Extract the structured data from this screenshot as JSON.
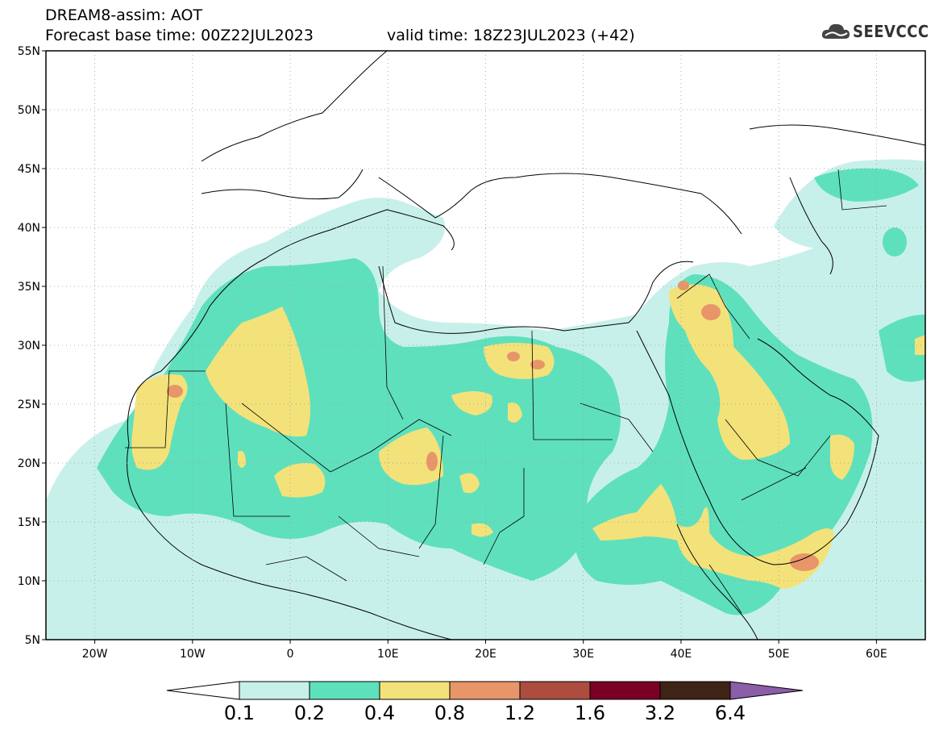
{
  "header": {
    "line1": "DREAM8-assim: AOT",
    "base_time": "Forecast base time: 00Z22JUL2023",
    "valid_time": "valid time: 18Z23JUL2023 (+42)"
  },
  "logo": {
    "text": "SEEVCCC",
    "icon": "cloud-icon"
  },
  "map": {
    "lon_range": [
      -25,
      65
    ],
    "lat_range": [
      5,
      55
    ],
    "lat_ticks": [
      "55N",
      "50N",
      "45N",
      "40N",
      "35N",
      "30N",
      "25N",
      "20N",
      "15N",
      "10N",
      "5N"
    ],
    "lon_ticks": [
      "20W",
      "10W",
      "0",
      "10E",
      "20E",
      "30E",
      "40E",
      "50E",
      "60E"
    ],
    "gridlines": "dotted"
  },
  "colorbar": {
    "labels": [
      "0.1",
      "0.2",
      "0.4",
      "0.8",
      "1.2",
      "1.6",
      "3.2",
      "6.4"
    ],
    "colors": [
      "#ffffff",
      "#c8f0ea",
      "#5fe0bd",
      "#f3e27a",
      "#e8956a",
      "#ad4d40",
      "#7a0026",
      "#3d2416",
      "#8b5ea8"
    ]
  }
}
